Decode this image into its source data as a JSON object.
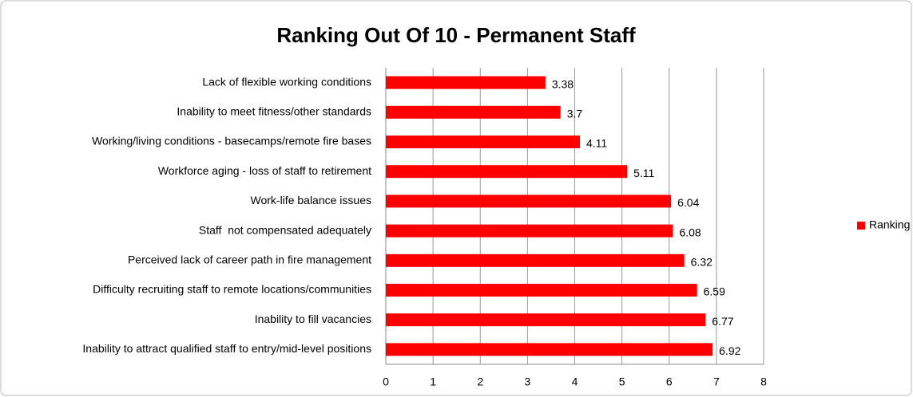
{
  "chart_data": {
    "type": "bar",
    "orientation": "horizontal",
    "title": "Ranking Out Of 10 - Permanent Staff",
    "categories": [
      "Lack of flexible working conditions",
      "Inability to meet fitness/other standards",
      "Working/living conditions - basecamps/remote fire bases",
      "Workforce aging - loss of staff to retirement",
      "Work-life balance issues",
      "Staff  not compensated adequately",
      "Perceived lack of career path in fire management",
      "Difficulty recruiting staff to remote locations/communities",
      "Inability to fill vacancies",
      "Inability to attract qualified staff to entry/mid-level positions"
    ],
    "series": [
      {
        "name": "Ranking Out Of 10",
        "color": "#ff0000",
        "values": [
          3.38,
          3.7,
          4.11,
          5.11,
          6.04,
          6.08,
          6.32,
          6.59,
          6.77,
          6.92
        ]
      }
    ],
    "xlim": [
      0,
      8
    ],
    "xticks": [
      0,
      1,
      2,
      3,
      4,
      5,
      6,
      7,
      8
    ],
    "grid": true,
    "legend": "right"
  }
}
